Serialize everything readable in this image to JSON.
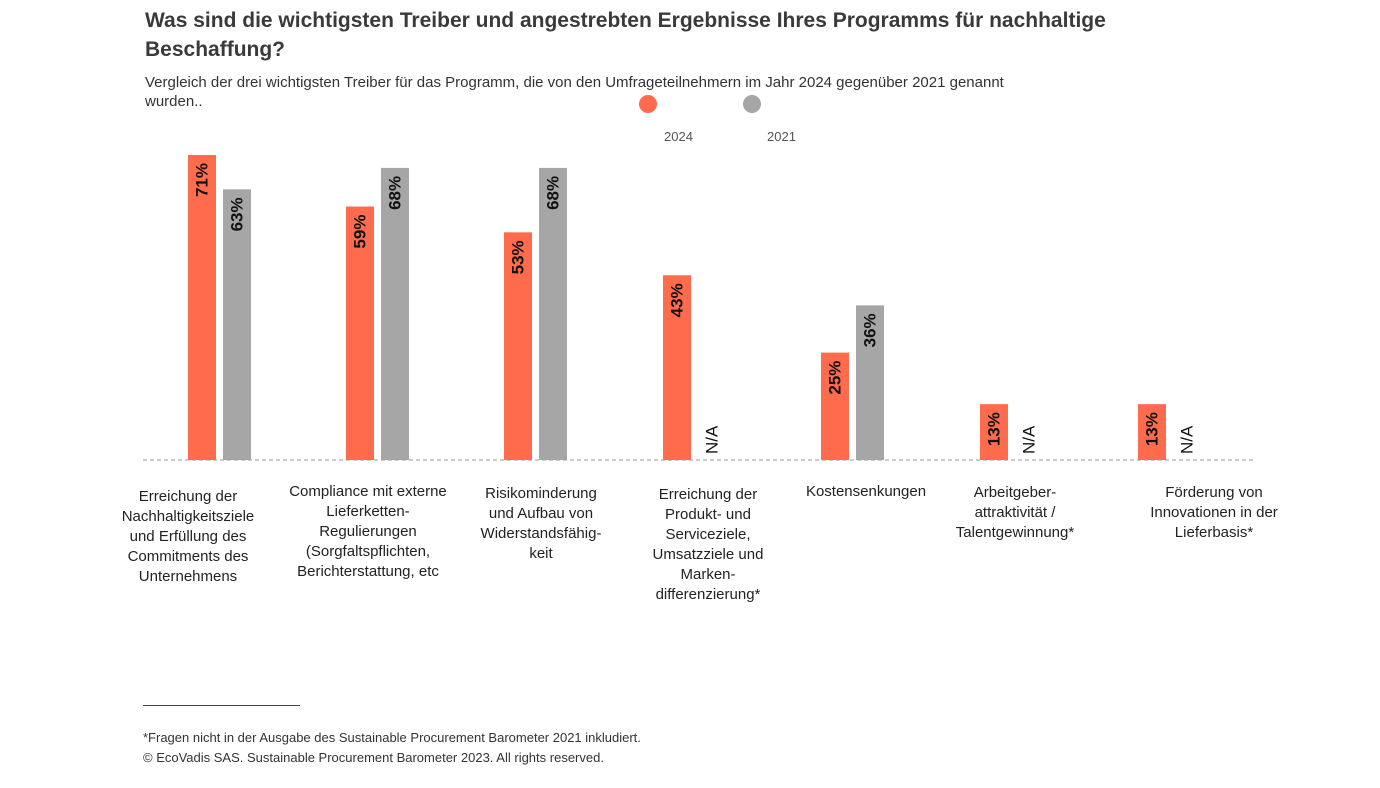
{
  "header": {
    "title": "Was sind die wichtigsten Treiber und angestrebten Ergebnisse Ihres Programms für nachhaltige Beschaffung?",
    "subtitle": "Vergleich der drei wichtigsten Treiber für das Programm, die von den Umfrageteilnehmern im Jahr 2024 gegenüber 2021 genannt wurden.."
  },
  "colors": {
    "series_2024": "#ff6b4d",
    "series_2021": "#a6a6a6",
    "baseline": "#999999"
  },
  "chart_data": {
    "type": "bar",
    "categories": [
      "Erreichung der Nachhaltigkeitsziele und Erfüllung des Commitments des Unternehmens",
      "Compliance mit externe Lieferketten-Regulierungen (Sorgfaltspflichten, Berichterstattung, etc",
      "Risikominderung und Aufbau von Widerstandsfähig-keit",
      "Erreichung der Produkt- und Serviceziele, Umsatzziele und Marken-differenzierung*",
      "Kostensenkungen",
      "Arbeitgeber-attraktivität / Talentgewinnung*",
      "Förderung von Innovationen in der Lieferbasis*"
    ],
    "category_lines": [
      [
        "Erreichung der",
        "Nachhaltigkeitsziele",
        "und Erfüllung des",
        "Commitments des",
        "Unternehmens"
      ],
      [
        "Compliance mit externe",
        "Lieferketten-",
        "Regulierungen",
        "(Sorgfaltspflichten,",
        "Berichterstattung, etc"
      ],
      [
        "Risikominderung",
        "und Aufbau von",
        "Widerstandsfähig-",
        "keit"
      ],
      [
        "Erreichung der",
        "Produkt- und",
        "Serviceziele,",
        "Umsatzziele und",
        "Marken-",
        "differenzierung*"
      ],
      [
        "Kostensenkungen"
      ],
      [
        "Arbeitgeber-",
        "attraktivität /",
        "Talentgewinnung*"
      ],
      [
        "Förderung von",
        "Innovationen in der",
        "Lieferbasis*"
      ]
    ],
    "series": [
      {
        "name": "2024",
        "values": [
          71,
          59,
          53,
          43,
          25,
          13,
          13
        ],
        "labels": [
          "71%",
          "59%",
          "53%",
          "43%",
          "25%",
          "13%",
          "13%"
        ]
      },
      {
        "name": "2021",
        "values": [
          63,
          68,
          68,
          null,
          36,
          null,
          null
        ],
        "labels": [
          "63%",
          "68%",
          "68%",
          "N/A",
          "36%",
          "N/A",
          "N/A"
        ]
      }
    ],
    "ylim": [
      0,
      75
    ],
    "grid": false,
    "legend": "top"
  },
  "footer": {
    "note": "*Fragen nicht in der Ausgabe des Sustainable Procurement Barometer 2021 inkludiert.",
    "copyright": "© EcoVadis SAS. Sustainable Procurement Barometer 2023. All rights reserved."
  }
}
